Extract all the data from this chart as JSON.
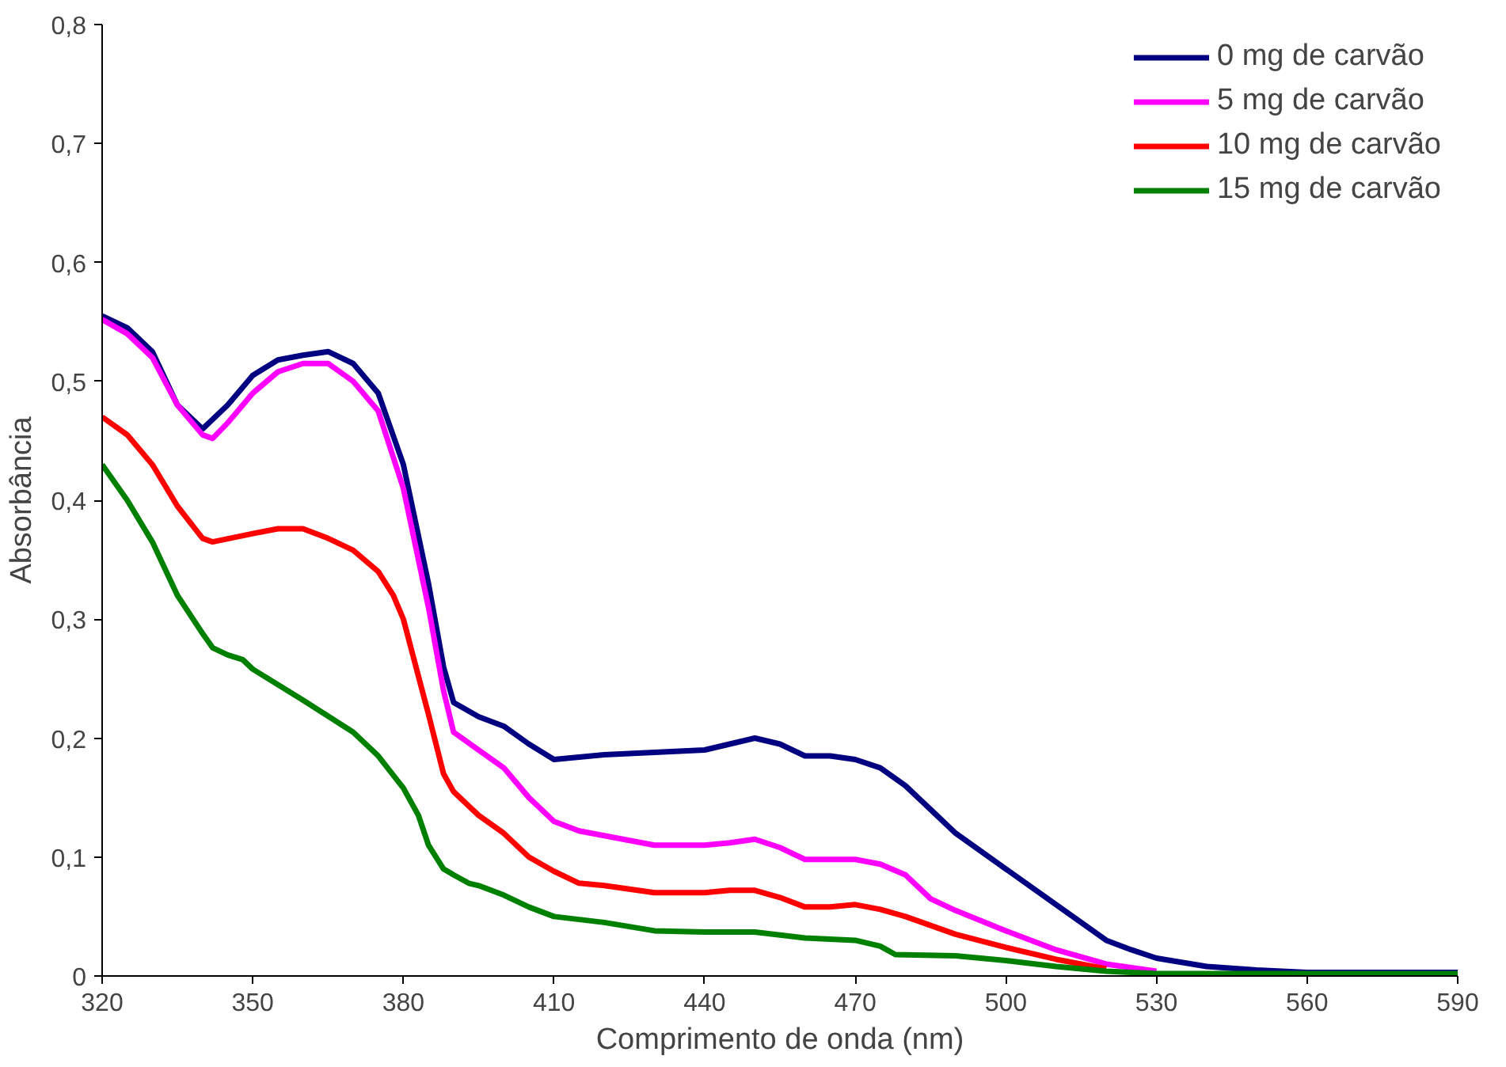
{
  "chart_data": {
    "type": "line",
    "xlabel": "Comprimento de onda (nm)",
    "ylabel": "Absorbância",
    "xlim": [
      320,
      590
    ],
    "xticks": [
      320,
      350,
      380,
      410,
      440,
      470,
      500,
      530,
      560,
      590
    ],
    "ylim": [
      0,
      0.8
    ],
    "yticks": [
      0,
      {
        "value": 0.1,
        "label": "0,1"
      },
      {
        "value": 0.2,
        "label": "0,2"
      },
      {
        "value": 0.3,
        "label": "0,3"
      },
      {
        "value": 0.4,
        "label": "0,4"
      },
      {
        "value": 0.5,
        "label": "0,5"
      },
      {
        "value": 0.6,
        "label": "0,6"
      },
      {
        "value": 0.7,
        "label": "0,7"
      },
      {
        "value": 0.8,
        "label": "0,8"
      }
    ],
    "grid": false,
    "legend": "top right",
    "marker": "none",
    "line_style": "solid",
    "series": [
      {
        "name": "0 mg de carvão",
        "color": "#000080",
        "x": [
          320,
          325,
          330,
          335,
          340,
          345,
          350,
          355,
          360,
          365,
          370,
          375,
          380,
          385,
          388,
          390,
          395,
          400,
          405,
          410,
          415,
          420,
          430,
          440,
          445,
          450,
          455,
          460,
          465,
          470,
          475,
          480,
          485,
          490,
          500,
          510,
          520,
          525,
          530,
          540,
          550,
          560,
          590
        ],
        "values": [
          0.555,
          0.545,
          0.525,
          0.48,
          0.46,
          0.48,
          0.505,
          0.518,
          0.522,
          0.525,
          0.515,
          0.49,
          0.43,
          0.33,
          0.26,
          0.23,
          0.218,
          0.21,
          0.195,
          0.182,
          0.184,
          0.186,
          0.188,
          0.19,
          0.195,
          0.2,
          0.195,
          0.185,
          0.185,
          0.182,
          0.175,
          0.16,
          0.14,
          0.12,
          0.09,
          0.06,
          0.03,
          0.022,
          0.015,
          0.008,
          0.005,
          0.003,
          0.003
        ]
      },
      {
        "name": "5 mg de carvão",
        "color": "#ff00ff",
        "x": [
          320,
          325,
          330,
          335,
          340,
          342,
          345,
          350,
          355,
          360,
          365,
          370,
          375,
          380,
          385,
          388,
          390,
          395,
          400,
          405,
          410,
          415,
          420,
          430,
          440,
          445,
          450,
          455,
          460,
          465,
          470,
          475,
          480,
          485,
          490,
          500,
          510,
          520,
          530
        ],
        "values": [
          0.552,
          0.54,
          0.52,
          0.48,
          0.455,
          0.452,
          0.465,
          0.49,
          0.508,
          0.515,
          0.515,
          0.5,
          0.475,
          0.41,
          0.31,
          0.24,
          0.205,
          0.19,
          0.175,
          0.15,
          0.13,
          0.122,
          0.118,
          0.11,
          0.11,
          0.112,
          0.115,
          0.108,
          0.098,
          0.098,
          0.098,
          0.094,
          0.085,
          0.065,
          0.055,
          0.038,
          0.022,
          0.01,
          0.004
        ]
      },
      {
        "name": "10 mg de carvão",
        "color": "#ff0000",
        "x": [
          320,
          325,
          330,
          335,
          340,
          342,
          350,
          355,
          360,
          365,
          370,
          375,
          378,
          380,
          385,
          388,
          390,
          395,
          400,
          405,
          410,
          415,
          420,
          430,
          440,
          445,
          450,
          455,
          460,
          465,
          470,
          475,
          480,
          490,
          500,
          510,
          520
        ],
        "values": [
          0.47,
          0.455,
          0.43,
          0.395,
          0.368,
          0.365,
          0.372,
          0.376,
          0.376,
          0.368,
          0.358,
          0.34,
          0.32,
          0.3,
          0.22,
          0.17,
          0.155,
          0.135,
          0.12,
          0.1,
          0.088,
          0.078,
          0.076,
          0.07,
          0.07,
          0.072,
          0.072,
          0.066,
          0.058,
          0.058,
          0.06,
          0.056,
          0.05,
          0.035,
          0.024,
          0.014,
          0.006
        ]
      },
      {
        "name": "15 mg de carvão",
        "color": "#008000",
        "x": [
          320,
          325,
          330,
          335,
          340,
          342,
          345,
          348,
          350,
          360,
          370,
          375,
          380,
          383,
          385,
          388,
          390,
          393,
          395,
          400,
          405,
          410,
          420,
          430,
          440,
          450,
          460,
          470,
          475,
          478,
          490,
          500,
          510,
          520,
          530,
          590
        ],
        "values": [
          0.43,
          0.4,
          0.365,
          0.32,
          0.288,
          0.276,
          0.27,
          0.266,
          0.258,
          0.232,
          0.205,
          0.185,
          0.158,
          0.135,
          0.11,
          0.09,
          0.085,
          0.078,
          0.076,
          0.068,
          0.058,
          0.05,
          0.045,
          0.038,
          0.037,
          0.037,
          0.032,
          0.03,
          0.025,
          0.018,
          0.017,
          0.013,
          0.008,
          0.004,
          0.002,
          0.002
        ]
      }
    ]
  }
}
